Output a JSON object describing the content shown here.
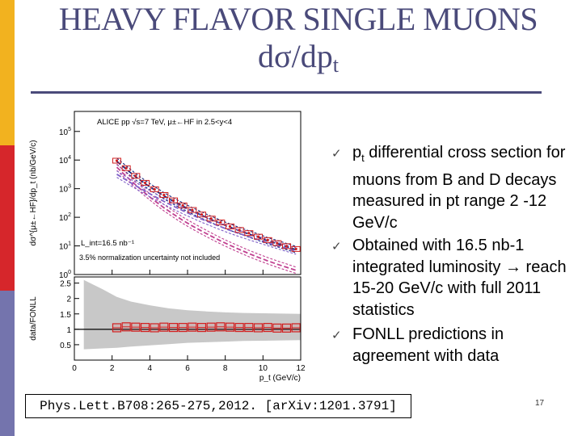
{
  "slide": {
    "title_line1": "HEAVY FLAVOR SINGLE MUONS",
    "title_line2_main": "dσ/dp",
    "title_line2_sub": "t",
    "colors": {
      "title": "#4a4a7a",
      "sidebar": [
        "#f2b21f",
        "#d6262b",
        "#7474ad"
      ]
    }
  },
  "bullets": [
    {
      "prefix": "p",
      "sub": "t",
      "text": " differential cross section for muons from B and D decays measured in pt range 2 -12 GeV/c",
      "icon": "checkmark-icon"
    },
    {
      "prefix": "",
      "sub": "",
      "text": "Obtained with 16.5 nb-1 integrated luminosity → reach 15-20 GeV/c with full 2011 statistics",
      "icon": "checkmark-icon"
    },
    {
      "prefix": "",
      "sub": "",
      "text": "FONLL predictions in agreement with data",
      "icon": "checkmark-icon"
    }
  ],
  "reference": "Phys.Lett.B708:265-275,2012. [arXiv:1201.3791]",
  "page_number": "17",
  "chart_data": [
    {
      "type": "line",
      "annotation": "ALICE pp √s=7 TeV, μ±←HF in 2.5<y<4",
      "luminosity_label": "L_int=16.5 nb⁻¹",
      "note": "3.5% normalization uncertainty not included",
      "ylabel": "dσ^{μ±←HF}/dp_t (nb/GeV/c)",
      "yscale": "log",
      "ylim": [
        1,
        500000
      ],
      "xlim": [
        0,
        12
      ],
      "y_ticks": [
        1,
        10,
        100,
        1000,
        10000,
        100000
      ],
      "x": [
        2.25,
        2.75,
        3.25,
        3.75,
        4.25,
        4.75,
        5.25,
        5.75,
        6.25,
        6.75,
        7.25,
        7.75,
        8.25,
        8.75,
        9.25,
        9.75,
        10.25,
        10.75,
        11.25,
        11.75
      ],
      "series": [
        {
          "role": "data",
          "color": "#d22020",
          "values": [
            9500,
            5200,
            2800,
            1600,
            950,
            600,
            390,
            260,
            180,
            125,
            90,
            66,
            48,
            36,
            28,
            21,
            16,
            12.5,
            9.8,
            7.8
          ]
        },
        {
          "role": "fonll-total",
          "color": "#1a2a80",
          "values": [
            9000,
            4800,
            2600,
            1500,
            900,
            560,
            365,
            245,
            168,
            118,
            84,
            61,
            45,
            34,
            26,
            20,
            15,
            12,
            9.4,
            7.4
          ]
        },
        {
          "role": "fonll-charm",
          "color": "#c04090",
          "values": [
            5600,
            2700,
            1350,
            700,
            380,
            215,
            128,
            78,
            50,
            33,
            22,
            15,
            10.5,
            7.5,
            5.4,
            4,
            3,
            2.3,
            1.8,
            1.4
          ]
        },
        {
          "role": "fonll-beauty",
          "color": "#8060c8",
          "values": [
            3200,
            2000,
            1280,
            820,
            540,
            360,
            245,
            170,
            120,
            86,
            63,
            47,
            35,
            27,
            21,
            16.5,
            13,
            10.3,
            8.2,
            6.6
          ]
        }
      ]
    },
    {
      "type": "scatter",
      "ylabel": "data/FONLL",
      "xlabel": "p_t (GeV/c)",
      "xlim": [
        0,
        12
      ],
      "ylim": [
        0,
        2.7
      ],
      "x_ticks": [
        0,
        2,
        4,
        6,
        8,
        10,
        12
      ],
      "y_ticks": [
        0.5,
        1,
        1.5,
        2,
        2.5
      ],
      "reference_line": 1,
      "band": {
        "x": [
          0.5,
          1.5,
          2.25,
          3,
          4,
          5,
          6,
          7,
          8,
          9,
          10,
          11,
          12
        ],
        "upper": [
          2.6,
          2.3,
          2.05,
          1.9,
          1.78,
          1.68,
          1.62,
          1.58,
          1.55,
          1.53,
          1.52,
          1.51,
          1.5
        ],
        "lower": [
          0.35,
          0.38,
          0.4,
          0.44,
          0.48,
          0.52,
          0.56,
          0.58,
          0.6,
          0.62,
          0.63,
          0.64,
          0.65
        ]
      },
      "x": [
        2.25,
        2.75,
        3.25,
        3.75,
        4.25,
        4.75,
        5.25,
        5.75,
        6.25,
        6.75,
        7.25,
        7.75,
        8.25,
        8.75,
        9.25,
        9.75,
        10.25,
        10.75,
        11.25,
        11.75
      ],
      "values": [
        1.05,
        1.08,
        1.07,
        1.06,
        1.05,
        1.07,
        1.06,
        1.06,
        1.07,
        1.06,
        1.07,
        1.08,
        1.07,
        1.06,
        1.06,
        1.05,
        1.06,
        1.04,
        1.04,
        1.05
      ],
      "color": "#d22020"
    }
  ]
}
